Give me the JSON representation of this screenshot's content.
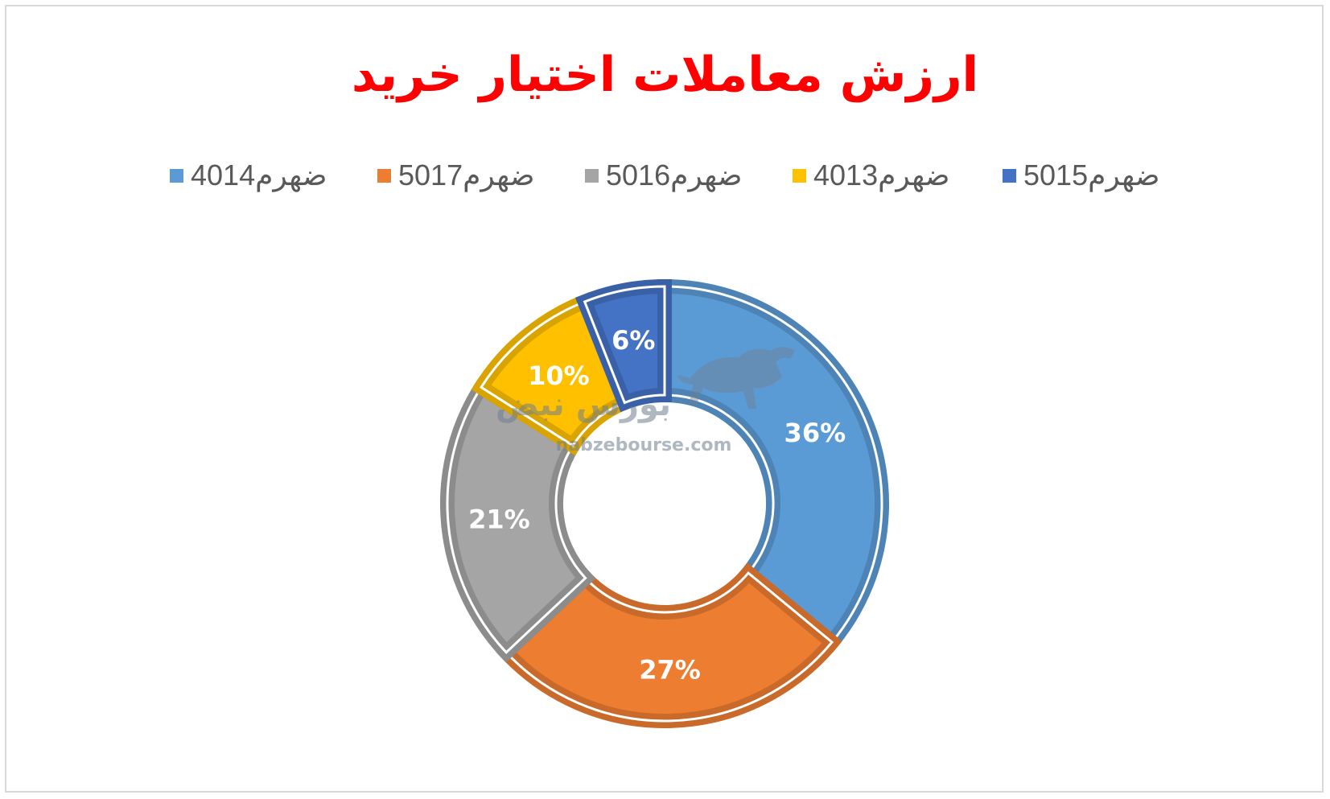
{
  "chart_data": {
    "type": "pie",
    "title": "ارزش معاملات اختیار خرید",
    "legend_position": "top",
    "categories": [
      "ضهرم4014",
      "ضهرم5017",
      "ضهرم5016",
      "ضهرم4013",
      "ضهرم5015"
    ],
    "values": [
      36,
      27,
      21,
      10,
      6
    ],
    "labels": [
      "36%",
      "27%",
      "21%",
      "10%",
      "6%"
    ],
    "colors": [
      "#5b9bd5",
      "#ed7d31",
      "#a5a5a5",
      "#ffc000",
      "#4472c4"
    ],
    "donut": true
  },
  "watermark": {
    "text": "nabzebourse.com",
    "logo": "بورس نبض",
    "icon": "bull-icon"
  }
}
